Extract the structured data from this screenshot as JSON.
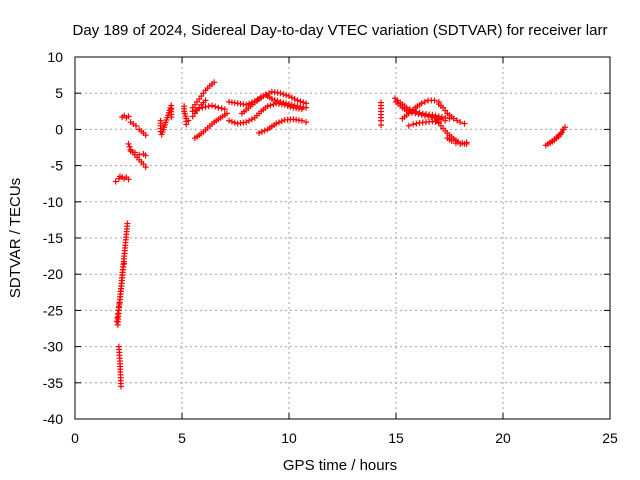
{
  "chart_data": {
    "type": "scatter",
    "title": "Day 189 of 2024, Sidereal Day-to-day VTEC variation (SDTVAR) for receiver larr",
    "xlabel": "GPS time / hours",
    "ylabel": "SDTVAR / TECUs",
    "xlim": [
      0,
      25
    ],
    "ylim": [
      -40,
      10
    ],
    "xticks": [
      0,
      5,
      10,
      15,
      20,
      25
    ],
    "yticks": [
      10,
      5,
      0,
      -5,
      -10,
      -15,
      -20,
      -25,
      -30,
      -35,
      -40
    ],
    "grid": true,
    "marker": "+",
    "color": "#ff0000",
    "series": [
      {
        "name": "SDTVAR",
        "segments": [
          {
            "x": [
              1.9,
              2.05,
              2.1,
              2.2,
              2.3,
              2.4,
              2.5
            ],
            "y": [
              -7.2,
              -6.8,
              -6.5,
              -6.6,
              -6.8,
              -6.6,
              -6.9
            ]
          },
          {
            "x": [
              2.2,
              2.3,
              2.4,
              2.5
            ],
            "y": [
              1.7,
              1.9,
              1.6,
              1.8
            ]
          },
          {
            "x": [
              2.6,
              2.85,
              3.0,
              3.2,
              3.3
            ],
            "y": [
              1.0,
              0.5,
              0.0,
              -0.5,
              -0.8
            ]
          },
          {
            "x": [
              2.5,
              2.6,
              2.8,
              3.0,
              3.2,
              3.3
            ],
            "y": [
              -2.0,
              -2.8,
              -3.5,
              -4.2,
              -4.8,
              -5.2
            ]
          },
          {
            "x": [
              2.6,
              2.8,
              3.0,
              3.2,
              3.3
            ],
            "y": [
              -3.0,
              -3.2,
              -3.5,
              -3.4,
              -3.6
            ]
          },
          {
            "x": [
              2.0,
              2.05,
              2.1,
              2.15,
              2.2,
              2.25,
              2.3,
              2.35,
              2.4,
              2.45
            ],
            "y": [
              -27.0,
              -25.0,
              -23.5,
              -22.0,
              -20.5,
              -19.0,
              -17.5,
              -16.0,
              -14.5,
              -13.0
            ]
          },
          {
            "x": [
              1.95,
              2.0,
              2.05,
              2.1,
              2.15,
              2.2,
              2.25,
              2.3
            ],
            "y": [
              -26.5,
              -25.5,
              -24.5,
              -23.5,
              -22.0,
              -20.5,
              -19.0,
              -18.5
            ]
          },
          {
            "x": [
              2.05,
              2.1,
              2.12,
              2.15
            ],
            "y": [
              -30.0,
              -32.0,
              -33.5,
              -35.5
            ]
          },
          {
            "x": [
              4.0,
              4.0,
              4.0,
              4.05,
              4.5,
              4.5,
              4.5
            ],
            "y": [
              1.2,
              0.5,
              -0.3,
              -0.7,
              3.3,
              2.8,
              1.7
            ]
          },
          {
            "x": [
              5.1,
              5.1,
              5.2,
              5.2,
              5.3
            ],
            "y": [
              3.2,
              2.5,
              1.5,
              0.7,
              1.2
            ]
          },
          {
            "x": [
              5.5,
              5.7,
              5.9,
              6.1,
              6.3,
              6.5
            ],
            "y": [
              3.0,
              3.8,
              4.6,
              5.4,
              6.0,
              6.5
            ]
          },
          {
            "x": [
              5.5,
              5.8,
              6.1,
              6.4,
              6.7,
              7.0
            ],
            "y": [
              2.5,
              2.9,
              3.1,
              3.3,
              3.0,
              2.8
            ]
          },
          {
            "x": [
              5.6,
              5.9,
              6.2,
              6.5,
              6.8,
              7.1
            ],
            "y": [
              -1.2,
              -0.6,
              0.2,
              1.0,
              1.6,
              2.2
            ]
          },
          {
            "x": [
              5.5,
              5.7,
              5.9,
              6.1
            ],
            "y": [
              1.8,
              2.6,
              3.4,
              4.0
            ]
          },
          {
            "x": [
              7.2,
              7.6,
              8.0,
              8.4,
              8.8,
              9.2,
              9.6,
              10.0,
              10.4,
              10.8
            ],
            "y": [
              3.8,
              3.6,
              3.4,
              3.9,
              4.6,
              5.2,
              5.0,
              4.6,
              4.0,
              3.6
            ]
          },
          {
            "x": [
              7.2,
              7.6,
              8.0,
              8.4,
              8.7,
              9.0,
              9.4,
              9.8,
              10.2,
              10.6
            ],
            "y": [
              1.2,
              0.8,
              1.0,
              1.6,
              2.5,
              3.2,
              3.6,
              3.4,
              3.0,
              2.8
            ]
          },
          {
            "x": [
              7.8,
              8.2,
              8.6,
              8.9,
              9.2,
              9.6,
              10.0,
              10.4,
              10.8
            ],
            "y": [
              2.2,
              3.2,
              4.2,
              4.8,
              4.2,
              3.8,
              3.5,
              3.2,
              3.0
            ]
          },
          {
            "x": [
              8.6,
              9.0,
              9.4,
              9.8,
              10.2,
              10.6,
              10.8
            ],
            "y": [
              -0.5,
              0.0,
              0.8,
              1.3,
              1.4,
              1.2,
              1.0
            ]
          },
          {
            "x": [
              14.3,
              14.3,
              14.3,
              14.3
            ],
            "y": [
              3.7,
              2.9,
              1.2,
              0.6
            ]
          },
          {
            "x": [
              14.95,
              15.2,
              15.5,
              15.8,
              16.1,
              16.4,
              16.7,
              17.0,
              17.3,
              17.5
            ],
            "y": [
              4.3,
              3.7,
              3.0,
              2.6,
              2.3,
              2.1,
              2.0,
              1.8,
              1.6,
              1.5
            ]
          },
          {
            "x": [
              15.0,
              15.3,
              15.6,
              15.9,
              16.2,
              16.5,
              16.8,
              17.1,
              17.3
            ],
            "y": [
              3.8,
              3.0,
              2.4,
              2.2,
              2.0,
              1.8,
              1.6,
              1.4,
              1.2
            ]
          },
          {
            "x": [
              15.3,
              15.6,
              15.9,
              16.2,
              16.5,
              16.8,
              17.0
            ],
            "y": [
              1.5,
              2.2,
              3.0,
              3.6,
              4.0,
              4.0,
              3.8
            ]
          },
          {
            "x": [
              15.6,
              15.8,
              16.1,
              16.4,
              16.7,
              17.0
            ],
            "y": [
              0.5,
              0.7,
              0.9,
              1.0,
              1.1,
              1.0
            ]
          },
          {
            "x": [
              17.0,
              17.2,
              17.4,
              17.7,
              18.0,
              18.2
            ],
            "y": [
              3.5,
              3.0,
              2.2,
              1.5,
              1.0,
              0.8
            ]
          },
          {
            "x": [
              16.9,
              17.1,
              17.3,
              17.5,
              17.7,
              17.9,
              18.1,
              18.3
            ],
            "y": [
              1.2,
              0.5,
              -0.2,
              -0.8,
              -1.3,
              -1.7,
              -1.9,
              -2.0
            ]
          },
          {
            "x": [
              17.4,
              17.6,
              17.8,
              18.0,
              18.2,
              18.3
            ],
            "y": [
              -1.2,
              -1.6,
              -1.9,
              -2.0,
              -2.0,
              -1.8
            ]
          },
          {
            "x": [
              22.0,
              22.2,
              22.4,
              22.6,
              22.75,
              22.9
            ],
            "y": [
              -2.2,
              -1.9,
              -1.5,
              -1.0,
              -0.4,
              0.3
            ]
          },
          {
            "x": [
              22.1,
              22.3,
              22.5,
              22.7,
              22.8
            ],
            "y": [
              -2.0,
              -1.6,
              -1.1,
              -0.6,
              0.0
            ]
          }
        ]
      }
    ]
  }
}
